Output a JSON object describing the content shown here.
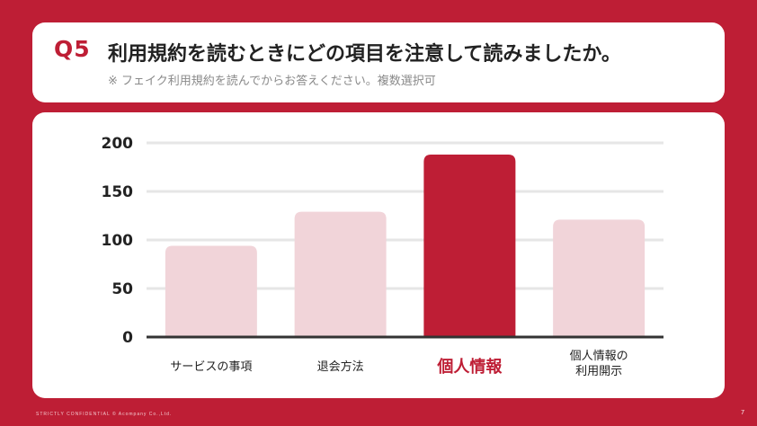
{
  "header": {
    "q_number": "Q5",
    "title": "利用規約を読むときにどの項目を注意して読みましたか。",
    "note": "※ フェイク利用規約を読んでからお答えください。複数選択可"
  },
  "chart_data": {
    "type": "bar",
    "categories": [
      [
        "サービスの事項"
      ],
      [
        "退会方法"
      ],
      [
        "個人情報"
      ],
      [
        "個人情報の",
        "利用開示"
      ]
    ],
    "values": [
      94,
      129,
      188,
      121
    ],
    "highlight_index": 2,
    "yticks": [
      0,
      50,
      100,
      150,
      200
    ],
    "ylim": [
      0,
      200
    ],
    "grid": true,
    "colors": {
      "bar": "#F1D4D9",
      "highlight": "#BE1E35",
      "grid": "#E6E6E6",
      "axis": "#333333"
    }
  },
  "footer": {
    "confidential": "STRICTLY CONFIDENTIAL © Acompany Co.,Ltd.",
    "page": "7"
  }
}
